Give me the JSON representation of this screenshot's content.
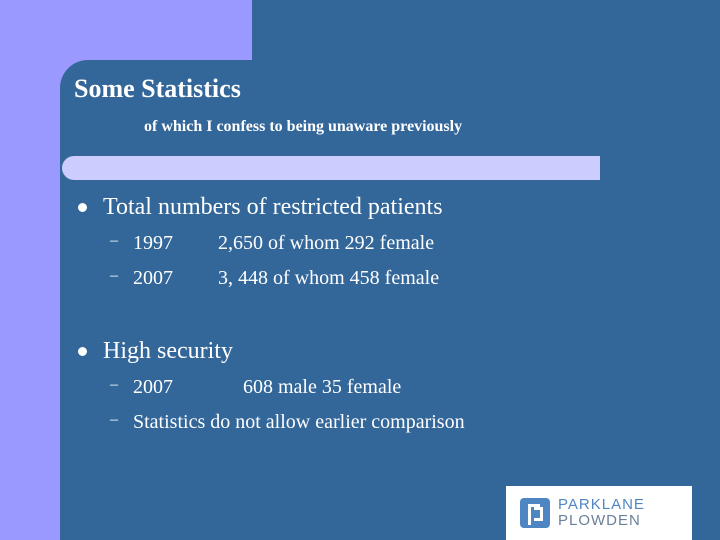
{
  "slide": {
    "title": "Some Statistics",
    "subtitle": "of which I confess to being unaware previously",
    "bullets": [
      {
        "text": "Total numbers of restricted patients",
        "subitems": [
          {
            "dash": "–",
            "col1": "1997",
            "col2": "2,650   of whom 292 female"
          },
          {
            "dash": "–",
            "col1": "2007",
            "col2": "3, 448   of whom 458 female"
          }
        ]
      },
      {
        "text": "High security",
        "subitems": [
          {
            "dash": "–",
            "col1": "2007",
            "col2": "608 male 35 female"
          },
          {
            "dash": "–",
            "col1": "Statistics do not allow earlier comparison",
            "col2": ""
          }
        ]
      }
    ]
  },
  "logo": {
    "line1": "PARKLANE",
    "line2": "PLOWDEN"
  },
  "colors": {
    "background": "#336699",
    "accent": "#9999ff",
    "separator": "#ccccff",
    "logo_blue": "#4e86c4"
  }
}
